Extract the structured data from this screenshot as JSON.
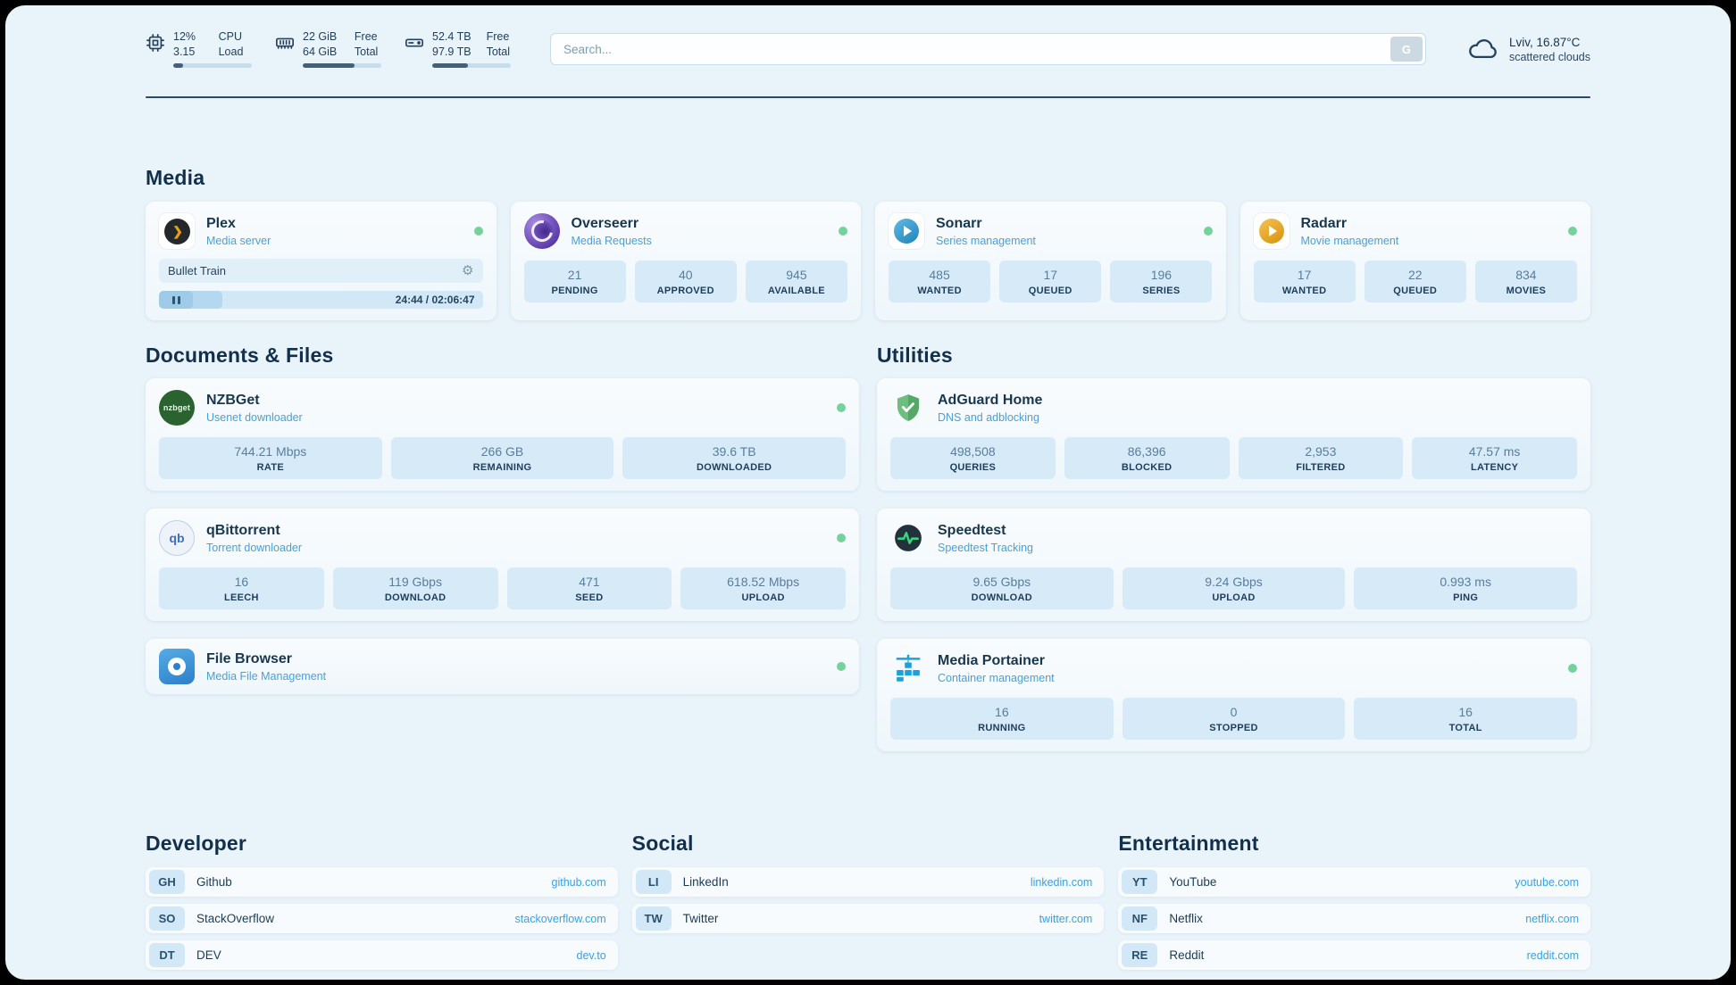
{
  "topbar": {
    "cpu": {
      "value1": "12%",
      "label1": "CPU",
      "value2": "3.15",
      "label2": "Load",
      "progress_pct": 12
    },
    "memory": {
      "value1": "22 GiB",
      "label1": "Free",
      "value2": "64 GiB",
      "label2": "Total",
      "progress_pct": 66
    },
    "storage": {
      "value1": "52.4 TB",
      "label1": "Free",
      "value2": "97.9 TB",
      "label2": "Total",
      "progress_pct": 46
    },
    "search": {
      "placeholder": "Search...",
      "button_label": "G"
    },
    "weather": {
      "location": "Lviv, 16.87°C",
      "condition": "scattered clouds"
    }
  },
  "sections": {
    "media": {
      "title": "Media",
      "plex": {
        "name": "Plex",
        "subtitle": "Media server",
        "status": "online",
        "now_playing": {
          "title": "Bullet Train",
          "time_display": "24:44 / 02:06:47",
          "elapsed": "24:44",
          "duration": "02:06:47",
          "progress_pct": 19.5
        }
      },
      "overseerr": {
        "name": "Overseerr",
        "subtitle": "Media Requests",
        "status": "online",
        "stats": [
          {
            "value": "21",
            "label": "PENDING"
          },
          {
            "value": "40",
            "label": "APPROVED"
          },
          {
            "value": "945",
            "label": "AVAILABLE"
          }
        ]
      },
      "sonarr": {
        "name": "Sonarr",
        "subtitle": "Series management",
        "status": "online",
        "stats": [
          {
            "value": "485",
            "label": "WANTED"
          },
          {
            "value": "17",
            "label": "QUEUED"
          },
          {
            "value": "196",
            "label": "SERIES"
          }
        ]
      },
      "radarr": {
        "name": "Radarr",
        "subtitle": "Movie management",
        "status": "online",
        "stats": [
          {
            "value": "17",
            "label": "WANTED"
          },
          {
            "value": "22",
            "label": "QUEUED"
          },
          {
            "value": "834",
            "label": "MOVIES"
          }
        ]
      }
    },
    "documents": {
      "title": "Documents & Files",
      "nzbget": {
        "name": "NZBGet",
        "subtitle": "Usenet downloader",
        "status": "online",
        "stats": [
          {
            "value": "744.21 Mbps",
            "label": "RATE"
          },
          {
            "value": "266 GB",
            "label": "REMAINING"
          },
          {
            "value": "39.6 TB",
            "label": "DOWNLOADED"
          }
        ]
      },
      "qbittorrent": {
        "name": "qBittorrent",
        "subtitle": "Torrent downloader",
        "status": "online",
        "stats": [
          {
            "value": "16",
            "label": "LEECH"
          },
          {
            "value": "119 Gbps",
            "label": "DOWNLOAD"
          },
          {
            "value": "471",
            "label": "SEED"
          },
          {
            "value": "618.52 Mbps",
            "label": "UPLOAD"
          }
        ]
      },
      "filebrowser": {
        "name": "File Browser",
        "subtitle": "Media File Management",
        "status": "online"
      }
    },
    "utilities": {
      "title": "Utilities",
      "adguard": {
        "name": "AdGuard Home",
        "subtitle": "DNS and adblocking",
        "stats": [
          {
            "value": "498,508",
            "label": "QUERIES"
          },
          {
            "value": "86,396",
            "label": "BLOCKED"
          },
          {
            "value": "2,953",
            "label": "FILTERED"
          },
          {
            "value": "47.57 ms",
            "label": "LATENCY"
          }
        ]
      },
      "speedtest": {
        "name": "Speedtest",
        "subtitle": "Speedtest Tracking",
        "stats": [
          {
            "value": "9.65 Gbps",
            "label": "DOWNLOAD"
          },
          {
            "value": "9.24 Gbps",
            "label": "UPLOAD"
          },
          {
            "value": "0.993 ms",
            "label": "PING"
          }
        ]
      },
      "portainer": {
        "name": "Media Portainer",
        "subtitle": "Container management",
        "status": "online",
        "stats": [
          {
            "value": "16",
            "label": "RUNNING"
          },
          {
            "value": "0",
            "label": "STOPPED"
          },
          {
            "value": "16",
            "label": "TOTAL"
          }
        ]
      }
    },
    "bookmarks": {
      "developer": {
        "title": "Developer",
        "items": [
          {
            "abbr": "GH",
            "name": "Github",
            "url": "github.com"
          },
          {
            "abbr": "SO",
            "name": "StackOverflow",
            "url": "stackoverflow.com"
          },
          {
            "abbr": "DT",
            "name": "DEV",
            "url": "dev.to"
          }
        ]
      },
      "social": {
        "title": "Social",
        "items": [
          {
            "abbr": "LI",
            "name": "LinkedIn",
            "url": "linkedin.com"
          },
          {
            "abbr": "TW",
            "name": "Twitter",
            "url": "twitter.com"
          }
        ]
      },
      "entertainment": {
        "title": "Entertainment",
        "items": [
          {
            "abbr": "YT",
            "name": "YouTube",
            "url": "youtube.com"
          },
          {
            "abbr": "NF",
            "name": "Netflix",
            "url": "netflix.com"
          },
          {
            "abbr": "RE",
            "name": "Reddit",
            "url": "reddit.com"
          }
        ]
      }
    }
  },
  "colors": {
    "page_bg": "#e9f3fa",
    "stat_bg": "#d7eaf8",
    "accent_blue": "#38a2e2",
    "subtitle_blue": "#4aa0d8",
    "status_green": "#74d29b",
    "text_dark": "#122f4b"
  }
}
